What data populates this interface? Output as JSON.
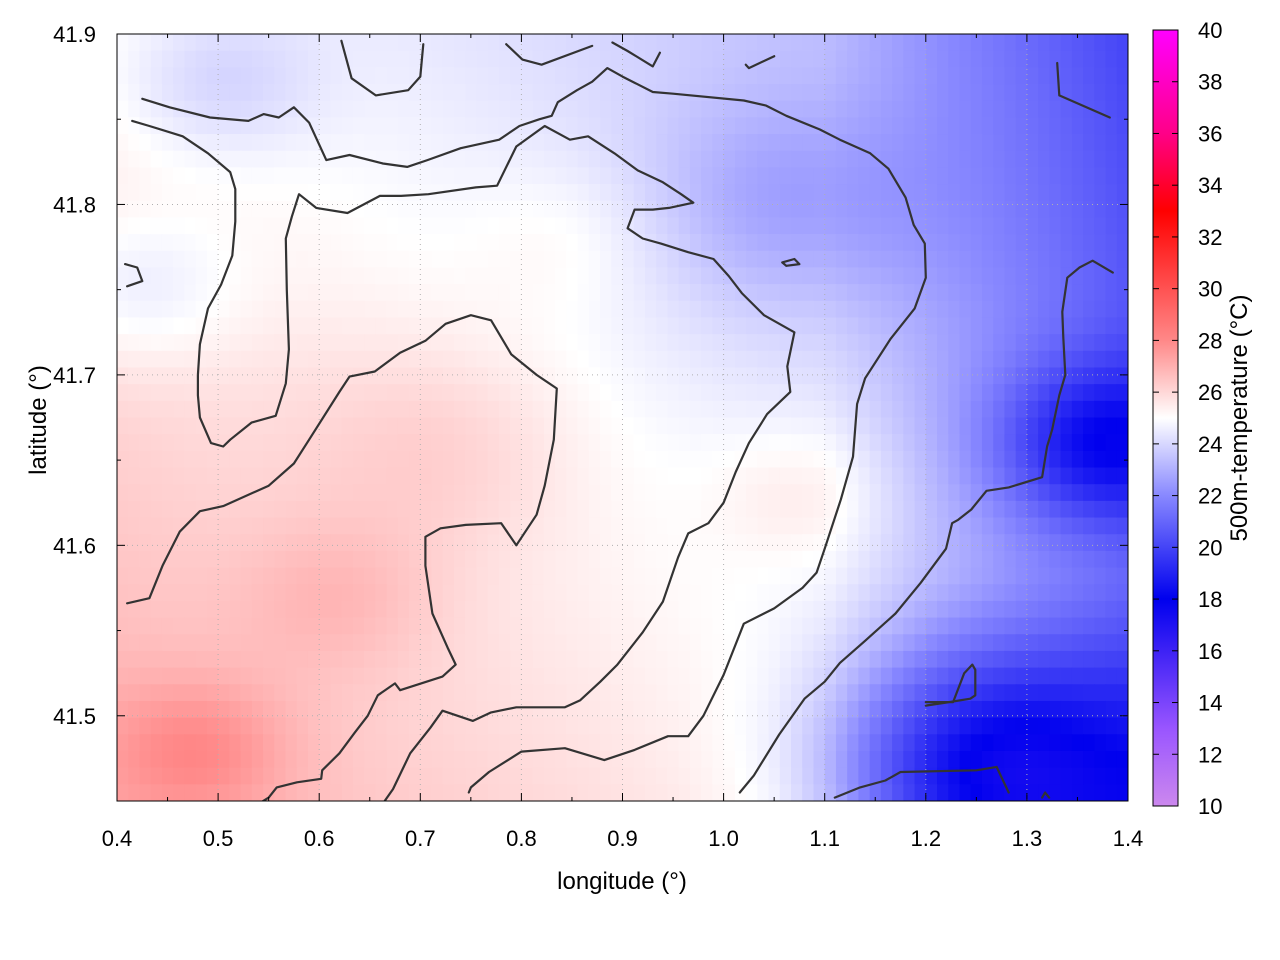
{
  "chart_data": {
    "type": "heatmap",
    "title": "",
    "xlabel": "longitude (°)",
    "ylabel": "latitude (°)",
    "colorbar_label": "500m-temperature (°C)",
    "xlim": [
      0.4,
      1.4
    ],
    "ylim": [
      41.45,
      41.9
    ],
    "x_ticks": [
      "0.4",
      "0.5",
      "0.6",
      "0.7",
      "0.8",
      "0.9",
      "1.0",
      "1.1",
      "1.2",
      "1.3",
      "1.4"
    ],
    "y_ticks": [
      "41.5",
      "41.6",
      "41.7",
      "41.8",
      "41.9"
    ],
    "y_tick_values": [
      41.5,
      41.6,
      41.7,
      41.8,
      41.9
    ],
    "colorbar_ticks": [
      "10",
      "12",
      "14",
      "16",
      "18",
      "20",
      "22",
      "24",
      "26",
      "28",
      "30",
      "32",
      "34",
      "36",
      "38",
      "40"
    ],
    "colorbar_range": [
      10,
      40
    ],
    "colorbar_stops": [
      {
        "value": 10,
        "color": "#cc88ee"
      },
      {
        "value": 13,
        "color": "#9955ff"
      },
      {
        "value": 18,
        "color": "#0000ee"
      },
      {
        "value": 22,
        "color": "#8888ff"
      },
      {
        "value": 25,
        "color": "#ffffff"
      },
      {
        "value": 28,
        "color": "#ff8888"
      },
      {
        "value": 33,
        "color": "#ff0000"
      },
      {
        "value": 36,
        "color": "#ff0088"
      },
      {
        "value": 40,
        "color": "#ff00ff"
      }
    ],
    "grid": true,
    "warm_cores": [
      {
        "lon": 0.72,
        "lat": 41.66,
        "temp": 26.5,
        "r": 0.14
      },
      {
        "lon": 0.85,
        "lat": 41.78,
        "temp": 26.0,
        "r": 0.1
      },
      {
        "lon": 1.08,
        "lat": 41.63,
        "temp": 26.5,
        "r": 0.09
      },
      {
        "lon": 0.62,
        "lat": 41.57,
        "temp": 26.5,
        "r": 0.1
      },
      {
        "lon": 0.48,
        "lat": 41.48,
        "temp": 27.5,
        "r": 0.09
      }
    ],
    "cool_areas": [
      {
        "lon": 1.25,
        "lat": 41.47,
        "temp": 17.0,
        "r": 0.15
      },
      {
        "lon": 1.37,
        "lat": 41.66,
        "temp": 19.0,
        "r": 0.1
      },
      {
        "lon": 1.06,
        "lat": 41.8,
        "temp": 22.5,
        "r": 0.14
      },
      {
        "lon": 0.42,
        "lat": 41.75,
        "temp": 23.0,
        "r": 0.1
      },
      {
        "lon": 0.5,
        "lat": 41.87,
        "temp": 23.0,
        "r": 0.1
      }
    ],
    "contours": [
      [
        [
          0.41,
          41.566
        ],
        [
          0.432,
          41.569
        ],
        [
          0.445,
          41.588
        ],
        [
          0.462,
          41.608
        ],
        [
          0.482,
          41.62
        ],
        [
          0.505,
          41.623
        ],
        [
          0.55,
          41.635
        ],
        [
          0.575,
          41.648
        ],
        [
          0.59,
          41.662
        ],
        [
          0.62,
          41.69
        ],
        [
          0.63,
          41.699
        ],
        [
          0.655,
          41.702
        ],
        [
          0.68,
          41.713
        ],
        [
          0.705,
          41.72
        ],
        [
          0.725,
          41.73
        ],
        [
          0.75,
          41.735
        ],
        [
          0.77,
          41.732
        ],
        [
          0.79,
          41.712
        ],
        [
          0.815,
          41.7
        ],
        [
          0.835,
          41.692
        ],
        [
          0.832,
          41.662
        ],
        [
          0.823,
          41.635
        ],
        [
          0.815,
          41.618
        ],
        [
          0.795,
          41.6
        ],
        [
          0.78,
          41.613
        ],
        [
          0.745,
          41.612
        ],
        [
          0.72,
          41.61
        ],
        [
          0.705,
          41.605
        ],
        [
          0.705,
          41.588
        ],
        [
          0.712,
          41.56
        ],
        [
          0.727,
          41.54
        ],
        [
          0.735,
          41.53
        ],
        [
          0.722,
          41.523
        ],
        [
          0.68,
          41.515
        ],
        [
          0.675,
          41.519
        ],
        [
          0.658,
          41.512
        ],
        [
          0.648,
          41.5
        ],
        [
          0.635,
          41.49
        ],
        [
          0.62,
          41.478
        ],
        [
          0.603,
          41.468
        ],
        [
          0.602,
          41.463
        ],
        [
          0.578,
          41.461
        ],
        [
          0.558,
          41.458
        ],
        [
          0.55,
          41.452
        ],
        [
          0.52,
          41.441
        ]
      ],
      [
        [
          0.408,
          41.765
        ],
        [
          0.42,
          41.763
        ],
        [
          0.425,
          41.755
        ],
        [
          0.41,
          41.752
        ]
      ],
      [
        [
          0.415,
          41.849
        ],
        [
          0.432,
          41.846
        ],
        [
          0.465,
          41.84
        ],
        [
          0.49,
          41.83
        ],
        [
          0.512,
          41.819
        ],
        [
          0.517,
          41.809
        ],
        [
          0.517,
          41.79
        ],
        [
          0.514,
          41.77
        ],
        [
          0.503,
          41.753
        ],
        [
          0.49,
          41.739
        ],
        [
          0.482,
          41.718
        ],
        [
          0.48,
          41.7
        ],
        [
          0.48,
          41.688
        ],
        [
          0.482,
          41.675
        ],
        [
          0.493,
          41.66
        ],
        [
          0.505,
          41.658
        ],
        [
          0.512,
          41.662
        ],
        [
          0.533,
          41.672
        ],
        [
          0.557,
          41.676
        ],
        [
          0.567,
          41.695
        ],
        [
          0.57,
          41.715
        ],
        [
          0.568,
          41.75
        ],
        [
          0.567,
          41.78
        ],
        [
          0.573,
          41.793
        ],
        [
          0.58,
          41.806
        ],
        [
          0.597,
          41.798
        ],
        [
          0.628,
          41.795
        ],
        [
          0.66,
          41.805
        ],
        [
          0.681,
          41.805
        ],
        [
          0.708,
          41.806
        ],
        [
          0.755,
          41.81
        ],
        [
          0.776,
          41.811
        ],
        [
          0.795,
          41.834
        ],
        [
          0.823,
          41.846
        ],
        [
          0.848,
          41.838
        ],
        [
          0.866,
          41.84
        ],
        [
          0.892,
          41.83
        ],
        [
          0.915,
          41.82
        ],
        [
          0.94,
          41.813
        ],
        [
          0.958,
          41.806
        ],
        [
          0.97,
          41.801
        ],
        [
          0.946,
          41.798
        ],
        [
          0.93,
          41.797
        ],
        [
          0.912,
          41.797
        ],
        [
          0.905,
          41.786
        ],
        [
          0.92,
          41.78
        ],
        [
          0.938,
          41.777
        ],
        [
          0.965,
          41.772
        ],
        [
          0.99,
          41.768
        ],
        [
          1.005,
          41.758
        ],
        [
          1.018,
          41.748
        ],
        [
          1.04,
          41.735
        ],
        [
          1.07,
          41.725
        ],
        [
          1.063,
          41.705
        ],
        [
          1.066,
          41.69
        ],
        [
          1.043,
          41.677
        ],
        [
          1.025,
          41.66
        ],
        [
          1.012,
          41.643
        ],
        [
          1.0,
          41.625
        ],
        [
          0.985,
          41.613
        ],
        [
          0.965,
          41.607
        ],
        [
          0.955,
          41.593
        ],
        [
          0.94,
          41.567
        ],
        [
          0.92,
          41.549
        ],
        [
          0.895,
          41.53
        ],
        [
          0.878,
          41.52
        ],
        [
          0.858,
          41.509
        ],
        [
          0.843,
          41.505
        ],
        [
          0.822,
          41.505
        ],
        [
          0.795,
          41.505
        ],
        [
          0.77,
          41.502
        ],
        [
          0.752,
          41.497
        ],
        [
          0.722,
          41.503
        ],
        [
          0.71,
          41.493
        ],
        [
          0.69,
          41.478
        ],
        [
          0.673,
          41.457
        ],
        [
          0.66,
          41.446
        ]
      ],
      [
        [
          0.748,
          41.455
        ],
        [
          0.75,
          41.458
        ],
        [
          0.768,
          41.467
        ],
        [
          0.8,
          41.479
        ],
        [
          0.843,
          41.481
        ],
        [
          0.882,
          41.474
        ],
        [
          0.912,
          41.48
        ],
        [
          0.945,
          41.488
        ],
        [
          0.965,
          41.488
        ],
        [
          0.98,
          41.5
        ],
        [
          1.0,
          41.524
        ],
        [
          1.02,
          41.554
        ],
        [
          1.05,
          41.563
        ],
        [
          1.078,
          41.575
        ],
        [
          1.092,
          41.584
        ],
        [
          1.1,
          41.598
        ],
        [
          1.116,
          41.627
        ],
        [
          1.128,
          41.652
        ],
        [
          1.132,
          41.683
        ],
        [
          1.14,
          41.698
        ],
        [
          1.165,
          41.721
        ],
        [
          1.189,
          41.739
        ],
        [
          1.2,
          41.757
        ],
        [
          1.199,
          41.777
        ],
        [
          1.188,
          41.788
        ],
        [
          1.18,
          41.804
        ],
        [
          1.163,
          41.821
        ],
        [
          1.145,
          41.83
        ],
        [
          1.115,
          41.838
        ],
        [
          1.095,
          41.844
        ],
        [
          1.062,
          41.852
        ],
        [
          1.042,
          41.858
        ],
        [
          1.02,
          41.861
        ],
        [
          0.95,
          41.865
        ],
        [
          0.93,
          41.866
        ],
        [
          0.9,
          41.875
        ],
        [
          0.885,
          41.88
        ],
        [
          0.87,
          41.872
        ],
        [
          0.855,
          41.867
        ],
        [
          0.836,
          41.86
        ],
        [
          0.83,
          41.852
        ],
        [
          0.818,
          41.85
        ],
        [
          0.798,
          41.846
        ],
        [
          0.778,
          41.838
        ],
        [
          0.74,
          41.833
        ],
        [
          0.707,
          41.826
        ],
        [
          0.687,
          41.822
        ],
        [
          0.663,
          41.824
        ],
        [
          0.63,
          41.829
        ],
        [
          0.607,
          41.826
        ],
        [
          0.59,
          41.848
        ],
        [
          0.575,
          41.857
        ],
        [
          0.56,
          41.851
        ],
        [
          0.545,
          41.853
        ],
        [
          0.53,
          41.849
        ],
        [
          0.492,
          41.851
        ],
        [
          0.452,
          41.857
        ],
        [
          0.425,
          41.862
        ]
      ],
      [
        [
          0.622,
          41.896
        ],
        [
          0.632,
          41.874
        ],
        [
          0.656,
          41.864
        ],
        [
          0.688,
          41.867
        ],
        [
          0.7,
          41.875
        ],
        [
          0.703,
          41.894
        ]
      ],
      [
        [
          0.785,
          41.894
        ],
        [
          0.801,
          41.885
        ],
        [
          0.82,
          41.882
        ],
        [
          0.87,
          41.893
        ]
      ],
      [
        [
          0.89,
          41.895
        ],
        [
          0.905,
          41.89
        ],
        [
          0.93,
          41.881
        ],
        [
          0.937,
          41.889
        ]
      ],
      [
        [
          1.022,
          41.882
        ],
        [
          1.025,
          41.88
        ],
        [
          1.05,
          41.887
        ]
      ],
      [
        [
          1.33,
          41.883
        ],
        [
          1.332,
          41.864
        ],
        [
          1.382,
          41.851
        ]
      ],
      [
        [
          1.2,
          41.506
        ],
        [
          1.223,
          41.508
        ],
        [
          1.244,
          41.51
        ],
        [
          1.249,
          41.512
        ],
        [
          1.249,
          41.527
        ],
        [
          1.246,
          41.53
        ],
        [
          1.238,
          41.525
        ],
        [
          1.227,
          41.508
        ],
        [
          1.2,
          41.508
        ]
      ],
      [
        [
          1.062,
          41.764
        ],
        [
          1.075,
          41.765
        ],
        [
          1.07,
          41.768
        ],
        [
          1.058,
          41.766
        ],
        [
          1.062,
          41.764
        ]
      ],
      [
        [
          1.016,
          41.455
        ],
        [
          1.03,
          41.465
        ],
        [
          1.055,
          41.489
        ],
        [
          1.08,
          41.51
        ],
        [
          1.1,
          41.52
        ],
        [
          1.115,
          41.531
        ],
        [
          1.14,
          41.544
        ],
        [
          1.17,
          41.56
        ],
        [
          1.195,
          41.578
        ],
        [
          1.22,
          41.598
        ],
        [
          1.226,
          41.613
        ],
        [
          1.232,
          41.615
        ],
        [
          1.245,
          41.621
        ],
        [
          1.26,
          41.632
        ],
        [
          1.282,
          41.634
        ],
        [
          1.315,
          41.64
        ],
        [
          1.32,
          41.658
        ],
        [
          1.325,
          41.668
        ],
        [
          1.332,
          41.688
        ],
        [
          1.338,
          41.7
        ],
        [
          1.336,
          41.722
        ],
        [
          1.335,
          41.737
        ],
        [
          1.34,
          41.757
        ],
        [
          1.352,
          41.763
        ],
        [
          1.365,
          41.767
        ],
        [
          1.385,
          41.76
        ]
      ],
      [
        [
          1.11,
          41.452
        ],
        [
          1.135,
          41.458
        ],
        [
          1.16,
          41.462
        ],
        [
          1.175,
          41.467
        ],
        [
          1.25,
          41.468
        ],
        [
          1.27,
          41.47
        ],
        [
          1.282,
          41.455
        ]
      ],
      [
        [
          1.315,
          41.452
        ],
        [
          1.318,
          41.455
        ],
        [
          1.322,
          41.452
        ]
      ]
    ]
  }
}
